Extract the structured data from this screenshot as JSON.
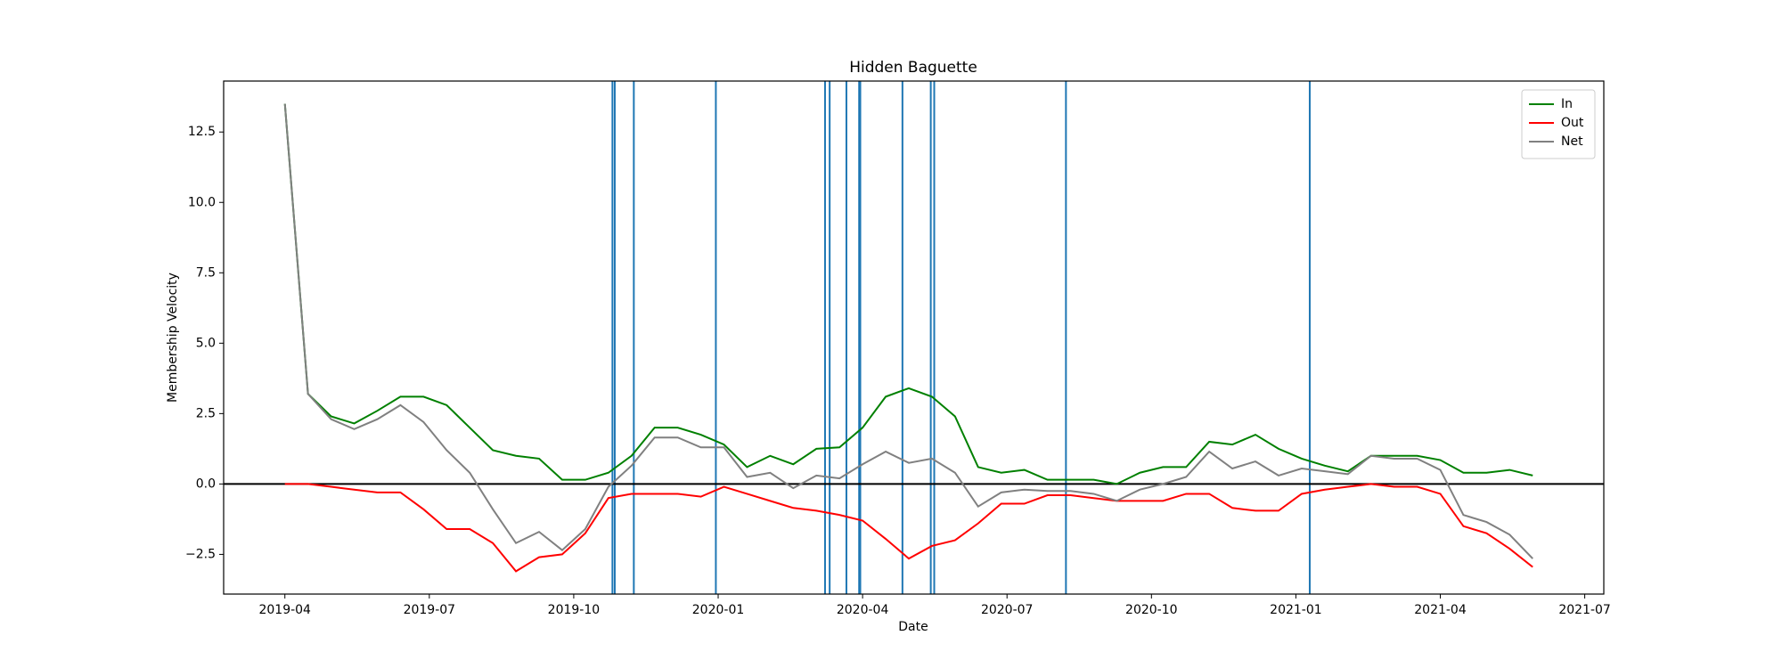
{
  "chart_data": {
    "type": "line",
    "title": "Hidden Baguette",
    "x_label": "Date",
    "y_label": "Membership Velocity",
    "x": [
      2019.25,
      2019.29,
      2019.33,
      2019.37,
      2019.41,
      2019.45,
      2019.49,
      2019.53,
      2019.57,
      2019.61,
      2019.65,
      2019.69,
      2019.73,
      2019.77,
      2019.81,
      2019.85,
      2019.89,
      2019.93,
      2019.97,
      2020.01,
      2020.05,
      2020.09,
      2020.13,
      2020.17,
      2020.21,
      2020.25,
      2020.29,
      2020.33,
      2020.37,
      2020.41,
      2020.45,
      2020.49,
      2020.53,
      2020.57,
      2020.61,
      2020.65,
      2020.69,
      2020.73,
      2020.77,
      2020.81,
      2020.85,
      2020.89,
      2020.93,
      2020.97,
      2021.01,
      2021.05,
      2021.09,
      2021.13,
      2021.17,
      2021.21,
      2021.25,
      2021.29,
      2021.33,
      2021.37,
      2021.41
    ],
    "series": [
      {
        "name": "In",
        "color": "#008000",
        "values": [
          13.5,
          3.2,
          2.4,
          2.15,
          2.6,
          3.1,
          3.1,
          2.8,
          2.0,
          1.2,
          1.0,
          0.9,
          0.15,
          0.15,
          0.4,
          1.0,
          2.0,
          2.0,
          1.75,
          1.4,
          0.6,
          1.0,
          0.7,
          1.25,
          1.3,
          2.0,
          3.1,
          3.4,
          3.1,
          2.4,
          0.6,
          0.4,
          0.5,
          0.15,
          0.15,
          0.15,
          0.0,
          0.4,
          0.6,
          0.6,
          1.5,
          1.4,
          1.75,
          1.25,
          0.9,
          0.65,
          0.45,
          1.0,
          1.0,
          1.0,
          0.85,
          0.4,
          0.4,
          0.5,
          0.3
        ]
      },
      {
        "name": "Out",
        "color": "#ff0000",
        "values": [
          0,
          0,
          -0.1,
          -0.2,
          -0.3,
          -0.3,
          -0.9,
          -1.6,
          -1.6,
          -2.1,
          -3.1,
          -2.6,
          -2.5,
          -1.75,
          -0.5,
          -0.35,
          -0.35,
          -0.35,
          -0.45,
          -0.1,
          -0.35,
          -0.6,
          -0.85,
          -0.95,
          -1.1,
          -1.3,
          -1.95,
          -2.65,
          -2.2,
          -2.0,
          -1.4,
          -0.7,
          -0.7,
          -0.4,
          -0.4,
          -0.5,
          -0.6,
          -0.6,
          -0.6,
          -0.35,
          -0.35,
          -0.85,
          -0.95,
          -0.95,
          -0.35,
          -0.2,
          -0.1,
          0.0,
          -0.1,
          -0.1,
          -0.35,
          -1.5,
          -1.75,
          -2.3,
          -2.95
        ]
      },
      {
        "name": "Net",
        "color": "#808080",
        "values": [
          13.5,
          3.2,
          2.3,
          1.95,
          2.3,
          2.8,
          2.2,
          1.2,
          0.4,
          -0.9,
          -2.1,
          -1.7,
          -2.35,
          -1.6,
          -0.1,
          0.65,
          1.65,
          1.65,
          1.3,
          1.3,
          0.25,
          0.4,
          -0.15,
          0.3,
          0.2,
          0.7,
          1.15,
          0.75,
          0.9,
          0.4,
          -0.8,
          -0.3,
          -0.2,
          -0.25,
          -0.25,
          -0.35,
          -0.6,
          -0.2,
          0.0,
          0.25,
          1.15,
          0.55,
          0.8,
          0.3,
          0.55,
          0.45,
          0.35,
          1.0,
          0.9,
          0.9,
          0.5,
          -1.1,
          -1.35,
          -1.8,
          -2.65
        ]
      }
    ],
    "vlines": [
      2019.817,
      2019.821,
      2019.854,
      2019.996,
      2020.185,
      2020.193,
      2020.222,
      2020.244,
      2020.246,
      2020.319,
      2020.368,
      2020.374,
      2020.602,
      2021.024
    ],
    "vline_color": "#1f77b4",
    "axhline": 0,
    "axhline_color": "#000000",
    "xlim": [
      2019.144,
      2021.533
    ],
    "ylim": [
      -3.91,
      14.31
    ],
    "xticks": [
      {
        "value": 2019.25,
        "label": "2019-04"
      },
      {
        "value": 2019.5,
        "label": "2019-07"
      },
      {
        "value": 2019.75,
        "label": "2019-10"
      },
      {
        "value": 2020.0,
        "label": "2020-01"
      },
      {
        "value": 2020.25,
        "label": "2020-04"
      },
      {
        "value": 2020.5,
        "label": "2020-07"
      },
      {
        "value": 2020.75,
        "label": "2020-10"
      },
      {
        "value": 2021.0,
        "label": "2021-01"
      },
      {
        "value": 2021.25,
        "label": "2021-04"
      },
      {
        "value": 2021.5,
        "label": "2021-07"
      }
    ],
    "yticks": [
      {
        "value": -2.5,
        "label": "−2.5"
      },
      {
        "value": 0,
        "label": "0.0"
      },
      2.5,
      {
        "value": 5,
        "label": "5.0"
      },
      7.5,
      {
        "value": 10,
        "label": "10.0"
      },
      12.5
    ],
    "legend": "upper right",
    "grid": false
  }
}
